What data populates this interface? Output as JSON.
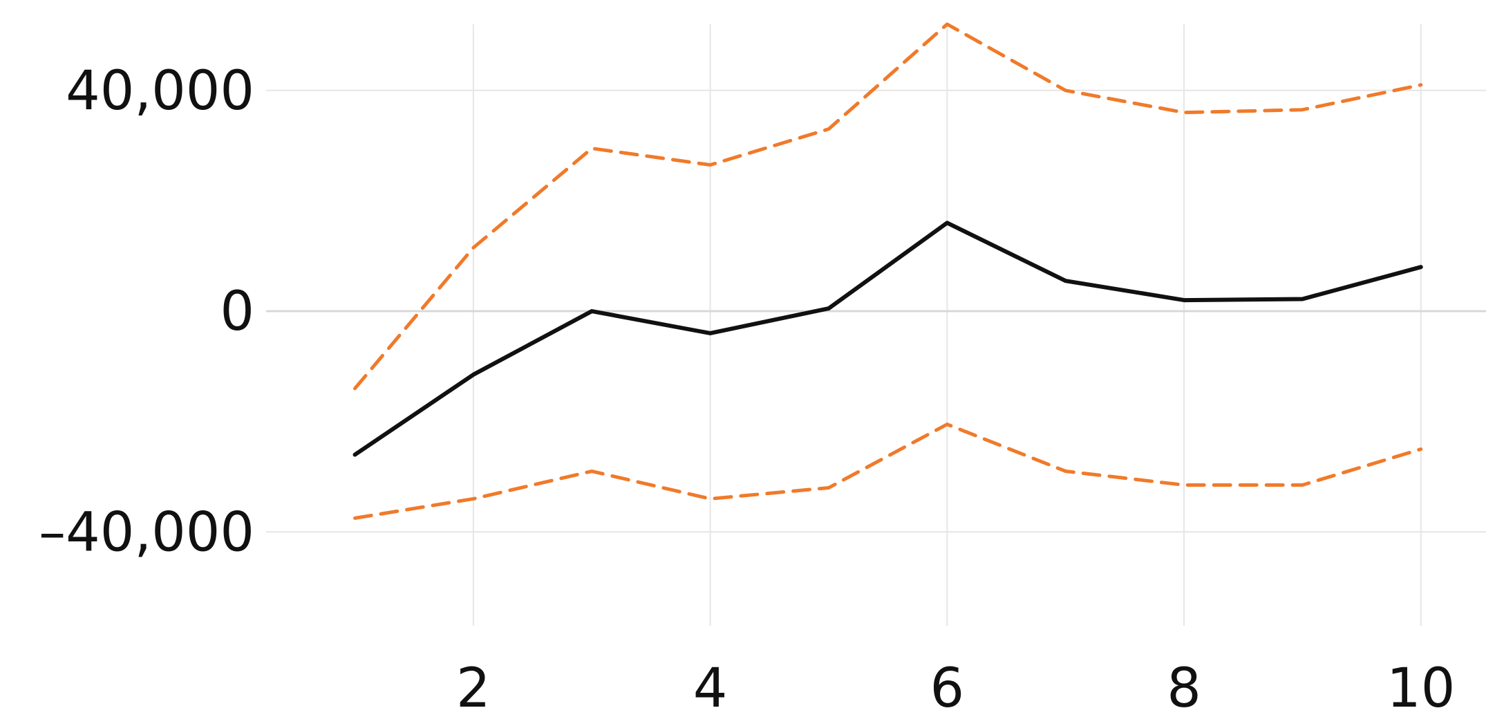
{
  "chart_data": {
    "type": "line",
    "title": "",
    "xlabel": "",
    "ylabel": "",
    "xlim": [
      0.25,
      10.55
    ],
    "ylim": [
      -57000,
      52000
    ],
    "x_ticks": [
      2,
      4,
      6,
      8,
      10
    ],
    "x_tick_labels": [
      "2",
      "4",
      "6",
      "8",
      "10"
    ],
    "y_ticks": [
      40000,
      0,
      -40000
    ],
    "y_tick_labels": [
      "40,000",
      "0",
      "–40,000"
    ],
    "grid": true,
    "legend": "none",
    "x": [
      1,
      2,
      3,
      4,
      5,
      6,
      7,
      8,
      9,
      10
    ],
    "series": [
      {
        "values": [
          -26000,
          -11500,
          0,
          -4000,
          500,
          16000,
          5500,
          2000,
          2200,
          8000
        ],
        "color": "#111111",
        "style": "solid"
      },
      {
        "values": [
          -14000,
          11500,
          29500,
          26500,
          33000,
          52000,
          40000,
          36000,
          36500,
          41000
        ],
        "color": "#f07a2a",
        "style": "dashed"
      },
      {
        "values": [
          -37500,
          -34000,
          -29000,
          -34000,
          -32000,
          -20500,
          -29000,
          -31500,
          -31500,
          -25000
        ],
        "color": "#f07a2a",
        "style": "dashed"
      }
    ]
  }
}
